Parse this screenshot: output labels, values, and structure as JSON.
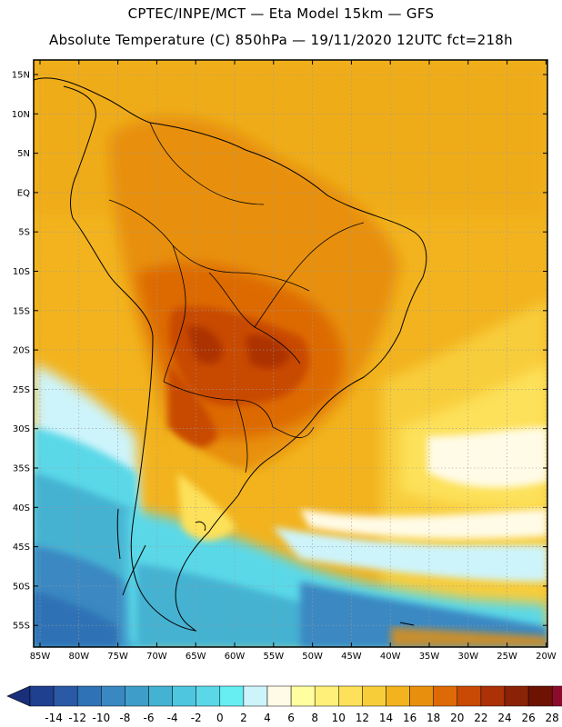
{
  "header": {
    "line1": "CPTEC/INPE/MCT —  Eta Model 15km — GFS",
    "line2": "Absolute Temperature (C) 850hPa — 19/11/2020 12UTC fct=218h"
  },
  "axes": {
    "lon_labels": [
      "85W",
      "80W",
      "75W",
      "70W",
      "65W",
      "60W",
      "55W",
      "50W",
      "45W",
      "40W",
      "35W",
      "30W",
      "25W",
      "20W"
    ],
    "lat_labels": [
      "15N",
      "10N",
      "5N",
      "EQ",
      "5S",
      "10S",
      "15S",
      "20S",
      "25S",
      "30S",
      "35S",
      "40S",
      "45S",
      "50S",
      "55S"
    ]
  },
  "colorbar": {
    "labels": [
      "-14",
      "-12",
      "-10",
      "-8",
      "-6",
      "-4",
      "-2",
      "0",
      "2",
      "4",
      "6",
      "8",
      "10",
      "12",
      "14",
      "16",
      "18",
      "20",
      "22",
      "24",
      "26",
      "28"
    ],
    "colors": [
      "#1f3f8f",
      "#2a5aa6",
      "#2f72b5",
      "#3a88c2",
      "#3f9ec9",
      "#44b2d2",
      "#4ec6df",
      "#5ad8e8",
      "#66eef2",
      "#cdf4fb",
      "#fffbe6",
      "#ffffa0",
      "#fff07a",
      "#fde15a",
      "#f8cd3a",
      "#f2b31e",
      "#e8900e",
      "#dd6a06",
      "#c84a04",
      "#ac3106",
      "#8a2206",
      "#6e1304",
      "#8c0a2a"
    ],
    "left_arrow_color": "#1a2f7a",
    "right_arrow_color": "#8c0a2a"
  }
}
